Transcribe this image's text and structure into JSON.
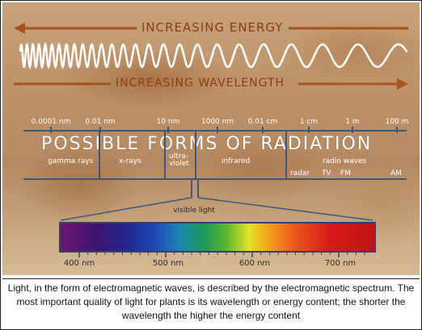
{
  "diagram": {
    "energy_label": "INCREASING ENERGY",
    "wavelength_label": "INCREASING WAVELENGTH",
    "title": "POSSIBLE FORMS OF RADIATION",
    "scale_labels": [
      "0.0001 nm",
      "0.01 nm",
      "10 nm",
      "1000 nm",
      "0.01 cm",
      "1 cm",
      "1 m",
      "100 m"
    ],
    "radiation_types": {
      "gamma": "gamma rays",
      "xrays": "x-rays",
      "uv_line1": "ultra-",
      "uv_line2": "violet",
      "infrared": "infrared",
      "radio": "radio waves",
      "radar": "radar",
      "tv": "TV",
      "fm": "FM",
      "am": "AM"
    },
    "visible_light_label": "visible light",
    "nm_labels": [
      "400 nm",
      "500 nm",
      "600 nm",
      "700 nm"
    ],
    "colors": {
      "arrow": "#a8531e",
      "scale": "#3f5878",
      "wave": "#ffffff"
    }
  },
  "caption": "Light, in the form of electromagnetic waves, is described by the electromagnetic spectrum. The most important quality of light for plants is its wavelength or energy content; the shorter the wavelength the higher the energy content"
}
